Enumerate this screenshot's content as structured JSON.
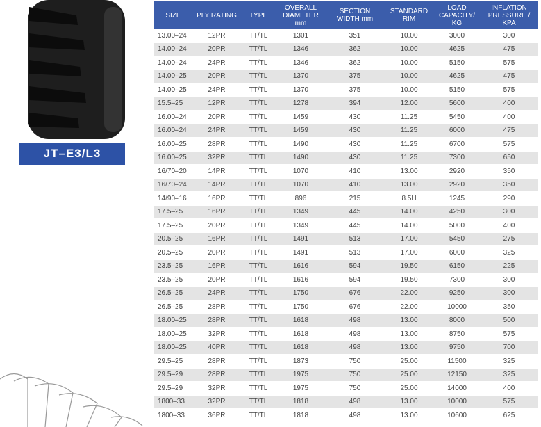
{
  "product": {
    "label": "JT–E3/L3"
  },
  "table": {
    "headers": [
      "SIZE",
      "PLY RATING",
      "TYPE",
      "OVERALL DIAMETER mm",
      "SECTION WIDTH mm",
      "STANDARD RIM",
      "LOAD CAPACITY/ KG",
      "INFLATION PRESSURE / KPA"
    ],
    "rows": [
      [
        "13.00–24",
        "12PR",
        "TT/TL",
        "1301",
        "351",
        "10.00",
        "3000",
        "300"
      ],
      [
        "14.00–24",
        "20PR",
        "TT/TL",
        "1346",
        "362",
        "10.00",
        "4625",
        "475"
      ],
      [
        "14.00–24",
        "24PR",
        "TT/TL",
        "1346",
        "362",
        "10.00",
        "5150",
        "575"
      ],
      [
        "14.00–25",
        "20PR",
        "TT/TL",
        "1370",
        "375",
        "10.00",
        "4625",
        "475"
      ],
      [
        "14.00–25",
        "24PR",
        "TT/TL",
        "1370",
        "375",
        "10.00",
        "5150",
        "575"
      ],
      [
        "15.5–25",
        "12PR",
        "TT/TL",
        "1278",
        "394",
        "12.00",
        "5600",
        "400"
      ],
      [
        "16.00–24",
        "20PR",
        "TT/TL",
        "1459",
        "430",
        "11.25",
        "5450",
        "400"
      ],
      [
        "16.00–24",
        "24PR",
        "TT/TL",
        "1459",
        "430",
        "11.25",
        "6000",
        "475"
      ],
      [
        "16.00–25",
        "28PR",
        "TT/TL",
        "1490",
        "430",
        "11.25",
        "6700",
        "575"
      ],
      [
        "16.00–25",
        "32PR",
        "TT/TL",
        "1490",
        "430",
        "11.25",
        "7300",
        "650"
      ],
      [
        "16/70–20",
        "14PR",
        "TT/TL",
        "1070",
        "410",
        "13.00",
        "2920",
        "350"
      ],
      [
        "16/70–24",
        "14PR",
        "TT/TL",
        "1070",
        "410",
        "13.00",
        "2920",
        "350"
      ],
      [
        "14/90–16",
        "16PR",
        "TT/TL",
        "896",
        "215",
        "8.5H",
        "1245",
        "290"
      ],
      [
        "17.5–25",
        "16PR",
        "TT/TL",
        "1349",
        "445",
        "14.00",
        "4250",
        "300"
      ],
      [
        "17.5–25",
        "20PR",
        "TT/TL",
        "1349",
        "445",
        "14.00",
        "5000",
        "400"
      ],
      [
        "20.5–25",
        "16PR",
        "TT/TL",
        "1491",
        "513",
        "17.00",
        "5450",
        "275"
      ],
      [
        "20.5–25",
        "20PR",
        "TT/TL",
        "1491",
        "513",
        "17.00",
        "6000",
        "325"
      ],
      [
        "23.5–25",
        "16PR",
        "TT/TL",
        "1616",
        "594",
        "19.50",
        "6150",
        "225"
      ],
      [
        "23.5–25",
        "20PR",
        "TT/TL",
        "1616",
        "594",
        "19.50",
        "7300",
        "300"
      ],
      [
        "26.5–25",
        "24PR",
        "TT/TL",
        "1750",
        "676",
        "22.00",
        "9250",
        "300"
      ],
      [
        "26.5–25",
        "28PR",
        "TT/TL",
        "1750",
        "676",
        "22.00",
        "10000",
        "350"
      ],
      [
        "18.00–25",
        "28PR",
        "TT/TL",
        "1618",
        "498",
        "13.00",
        "8000",
        "500"
      ],
      [
        "18.00–25",
        "32PR",
        "TT/TL",
        "1618",
        "498",
        "13.00",
        "8750",
        "575"
      ],
      [
        "18.00–25",
        "40PR",
        "TT/TL",
        "1618",
        "498",
        "13.00",
        "9750",
        "700"
      ],
      [
        "29.5–25",
        "28PR",
        "TT/TL",
        "1873",
        "750",
        "25.00",
        "11500",
        "325"
      ],
      [
        "29.5–29",
        "28PR",
        "TT/TL",
        "1975",
        "750",
        "25.00",
        "12150",
        "325"
      ],
      [
        "29.5–29",
        "32PR",
        "TT/TL",
        "1975",
        "750",
        "25.00",
        "14000",
        "400"
      ],
      [
        "1800–33",
        "32PR",
        "TT/TL",
        "1818",
        "498",
        "13.00",
        "10000",
        "575"
      ],
      [
        "1800–33",
        "36PR",
        "TT/TL",
        "1818",
        "498",
        "13.00",
        "10600",
        "625"
      ]
    ]
  }
}
